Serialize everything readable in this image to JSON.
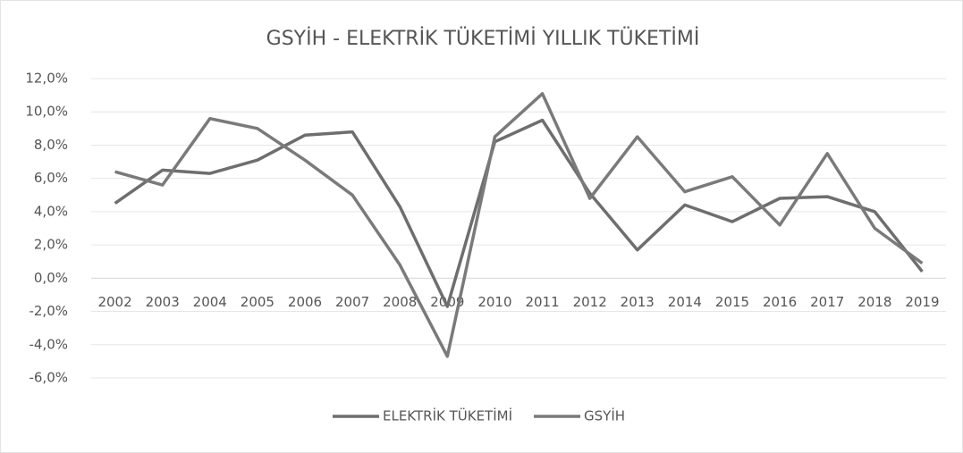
{
  "chart_data": {
    "type": "line",
    "title": "GSYİH - ELEKTRİK TÜKETİMİ YILLIK TÜKETİMİ",
    "categories": [
      "2002",
      "2003",
      "2004",
      "2005",
      "2006",
      "2007",
      "2008",
      "2009",
      "2010",
      "2011",
      "2012",
      "2013",
      "2014",
      "2015",
      "2016",
      "2017",
      "2018",
      "2019"
    ],
    "series": [
      {
        "name": "ELEKTRİK TÜKETİMİ",
        "color": "#6e6e6e",
        "values": [
          4.5,
          6.5,
          6.3,
          7.1,
          8.6,
          8.8,
          4.3,
          -1.7,
          8.2,
          9.5,
          5.1,
          1.7,
          4.4,
          3.4,
          4.8,
          4.9,
          4.0,
          0.4
        ]
      },
      {
        "name": "GSYİH",
        "color": "#7a7a7a",
        "values": [
          6.4,
          5.6,
          9.6,
          9.0,
          7.1,
          5.0,
          0.8,
          -4.7,
          8.5,
          11.1,
          4.8,
          8.5,
          5.2,
          6.1,
          3.2,
          7.5,
          3.0,
          0.9
        ]
      }
    ],
    "ylim": [
      -6,
      12
    ],
    "yticks": [
      {
        "value": -6,
        "label": "-6,0%"
      },
      {
        "value": -4,
        "label": "-4,0%"
      },
      {
        "value": -2,
        "label": "-2,0%"
      },
      {
        "value": 0,
        "label": "0,0%"
      },
      {
        "value": 2,
        "label": "2,0%"
      },
      {
        "value": 4,
        "label": "4,0%"
      },
      {
        "value": 6,
        "label": "6,0%"
      },
      {
        "value": 8,
        "label": "8,0%"
      },
      {
        "value": 10,
        "label": "10,0%"
      },
      {
        "value": 12,
        "label": "12,0%"
      }
    ],
    "grid": true,
    "legend": "bottom"
  }
}
